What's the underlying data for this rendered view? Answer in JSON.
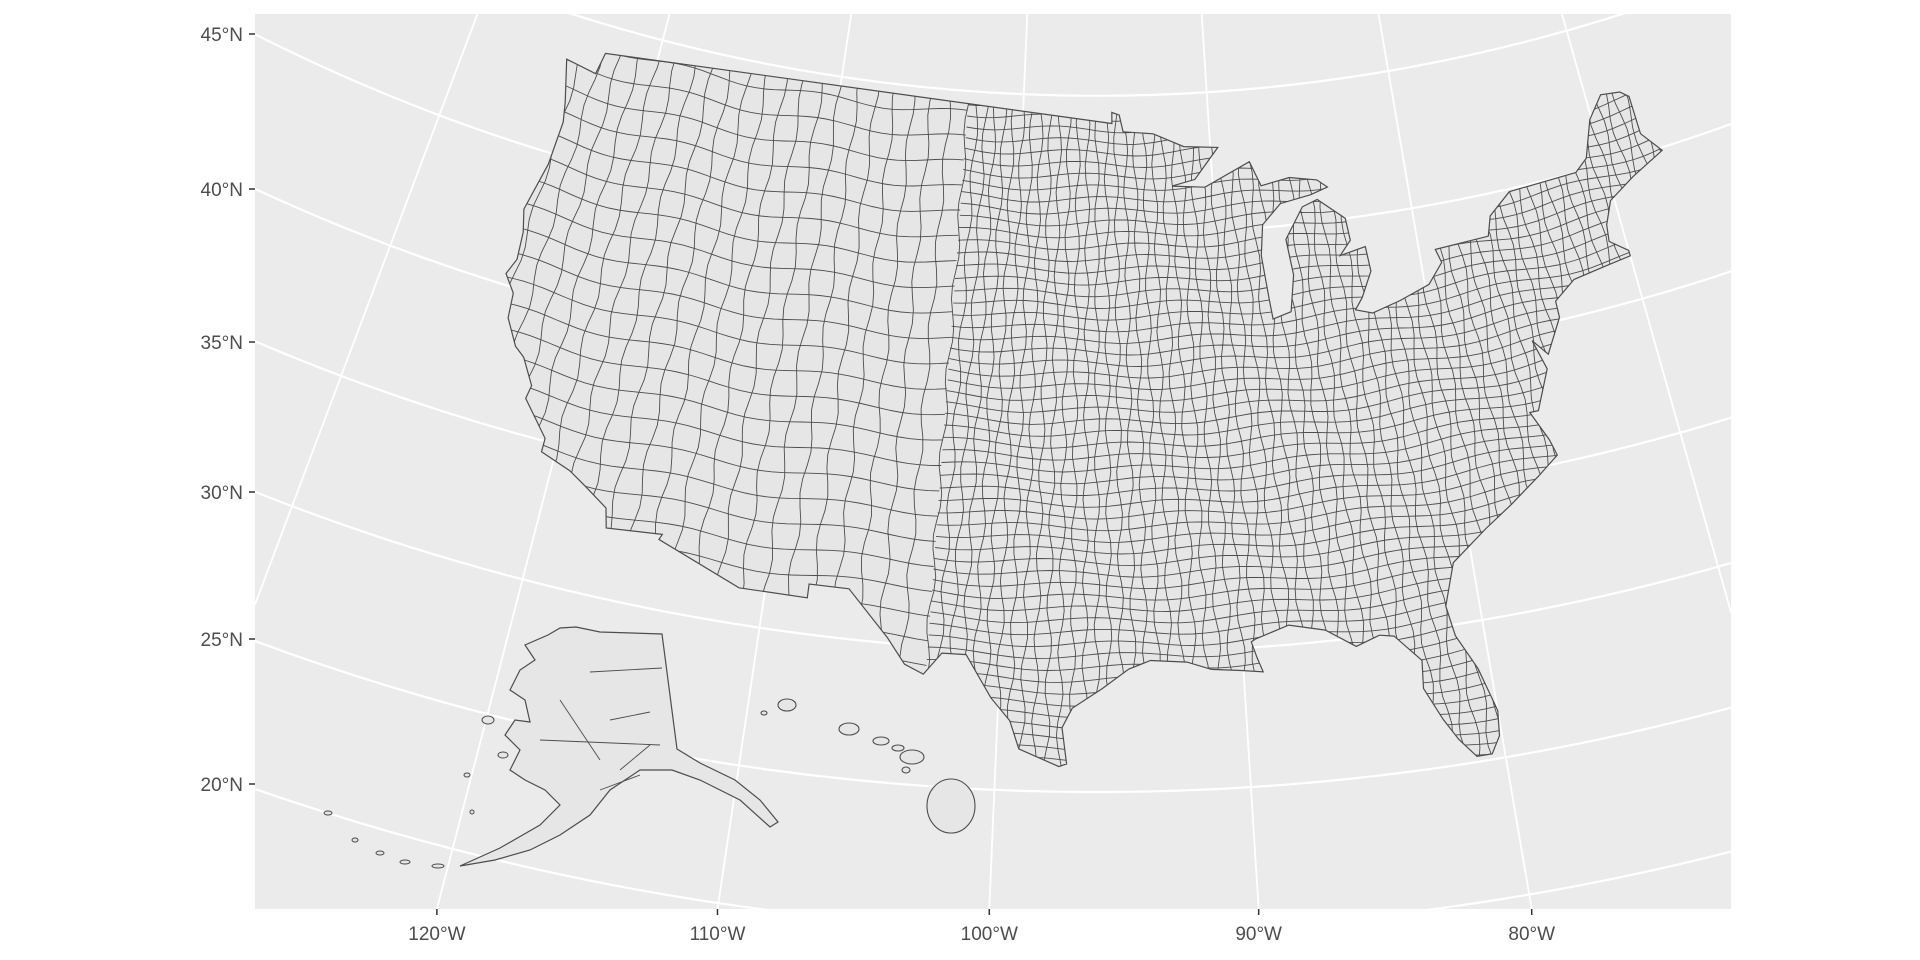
{
  "chart_data": {
    "type": "map",
    "title": "",
    "projection": "conic (Albers-like), central meridian ~96°W",
    "background_color": "#EBEBEB",
    "grid_color": "#FFFFFF",
    "land_fill": "#E6E6E6",
    "border_color": "#4D4D4D",
    "grid": true,
    "y_ticks": [
      {
        "lat": 45,
        "label": "45°N"
      },
      {
        "lat": 40,
        "label": "40°N"
      },
      {
        "lat": 35,
        "label": "35°N"
      },
      {
        "lat": 30,
        "label": "30°N"
      },
      {
        "lat": 25,
        "label": "25°N"
      },
      {
        "lat": 20,
        "label": "20°N"
      }
    ],
    "x_ticks": [
      {
        "lon": -120,
        "label": "120°W"
      },
      {
        "lon": -110,
        "label": "110°W"
      },
      {
        "lon": -100,
        "label": "100°W"
      },
      {
        "lon": -90,
        "label": "90°W"
      },
      {
        "lon": -80,
        "label": "80°W"
      }
    ],
    "regions": [
      "Contiguous US counties",
      "Alaska (inset)",
      "Hawaii (inset)"
    ],
    "contiguous_outline": [
      [
        -124.7,
        48.4
      ],
      [
        -123,
        48.2
      ],
      [
        -122.8,
        49
      ],
      [
        -95.2,
        49
      ],
      [
        -95.2,
        49.4
      ],
      [
        -94.8,
        49.3
      ],
      [
        -94.6,
        48.7
      ],
      [
        -93,
        48.6
      ],
      [
        -91.4,
        48.1
      ],
      [
        -89.6,
        48
      ],
      [
        -90.9,
        46.9
      ],
      [
        -92.1,
        46.7
      ],
      [
        -90.4,
        46.6
      ],
      [
        -88,
        47.4
      ],
      [
        -87.5,
        46.5
      ],
      [
        -86,
        46.7
      ],
      [
        -84.6,
        46.5
      ],
      [
        -84.1,
        46.2
      ],
      [
        -85,
        46
      ],
      [
        -86.6,
        45.8
      ],
      [
        -87.6,
        45.1
      ],
      [
        -87.8,
        44
      ],
      [
        -87.6,
        42.4
      ],
      [
        -87.5,
        41.7
      ],
      [
        -86.6,
        41.9
      ],
      [
        -86.3,
        43.2
      ],
      [
        -86.5,
        44.5
      ],
      [
        -85.5,
        45.6
      ],
      [
        -84.7,
        45.8
      ],
      [
        -83.4,
        45
      ],
      [
        -83.3,
        44.2
      ],
      [
        -83.9,
        43.7
      ],
      [
        -82.6,
        43.9
      ],
      [
        -82.5,
        43
      ],
      [
        -83.1,
        42.1
      ],
      [
        -83.5,
        41.7
      ],
      [
        -82.7,
        41.5
      ],
      [
        -81.3,
        41.8
      ],
      [
        -79.8,
        42.2
      ],
      [
        -79,
        42.9
      ],
      [
        -79.2,
        43.4
      ],
      [
        -76.5,
        43.5
      ],
      [
        -76.2,
        44.2
      ],
      [
        -75,
        44.9
      ],
      [
        -71.5,
        45
      ],
      [
        -70.8,
        45.4
      ],
      [
        -70.1,
        46.7
      ],
      [
        -69.2,
        47.45
      ],
      [
        -68.2,
        47.35
      ],
      [
        -67.8,
        47.1
      ],
      [
        -67.8,
        45.7
      ],
      [
        -67,
        44.9
      ],
      [
        -68.8,
        44.3
      ],
      [
        -70.2,
        43.7
      ],
      [
        -70.7,
        42.9
      ],
      [
        -70.8,
        42.3
      ],
      [
        -70,
        41.8
      ],
      [
        -70,
        41.6
      ],
      [
        -71.1,
        41.5
      ],
      [
        -72.9,
        41.3
      ],
      [
        -74,
        40.7
      ],
      [
        -74,
        40.1
      ],
      [
        -74.9,
        38.9
      ],
      [
        -75.5,
        39.5
      ],
      [
        -75.1,
        38.4
      ],
      [
        -75.9,
        37
      ],
      [
        -76.3,
        37
      ],
      [
        -75.7,
        35.9
      ],
      [
        -75.5,
        35.3
      ],
      [
        -76.5,
        34.7
      ],
      [
        -77.9,
        33.9
      ],
      [
        -79.2,
        33.2
      ],
      [
        -80.8,
        32.2
      ],
      [
        -81.4,
        30.7
      ],
      [
        -81.2,
        29.6
      ],
      [
        -80.5,
        28.3
      ],
      [
        -80,
        26.7
      ],
      [
        -80.1,
        25.8
      ],
      [
        -80.5,
        25.2
      ],
      [
        -81.1,
        25.2
      ],
      [
        -81.7,
        25.9
      ],
      [
        -82.2,
        26.7
      ],
      [
        -82.8,
        27.9
      ],
      [
        -82.7,
        28.9
      ],
      [
        -83.7,
        29.9
      ],
      [
        -84.3,
        30
      ],
      [
        -85.3,
        29.7
      ],
      [
        -86.5,
        30.4
      ],
      [
        -88,
        30.7
      ],
      [
        -89.4,
        30.3
      ],
      [
        -89.6,
        30.2
      ],
      [
        -89.4,
        29.6
      ],
      [
        -89.2,
        29.1
      ],
      [
        -90.1,
        29.2
      ],
      [
        -91.3,
        29.3
      ],
      [
        -92.3,
        29.6
      ],
      [
        -93.8,
        29.7
      ],
      [
        -94.7,
        29.4
      ],
      [
        -95.8,
        28.7
      ],
      [
        -97,
        28
      ],
      [
        -97.4,
        27.3
      ],
      [
        -97.2,
        26
      ],
      [
        -97.5,
        25.9
      ],
      [
        -99.1,
        26.5
      ],
      [
        -99.5,
        27.5
      ],
      [
        -100.3,
        28.3
      ],
      [
        -101.4,
        29.8
      ],
      [
        -102.4,
        29.8
      ],
      [
        -103.1,
        29
      ],
      [
        -103.9,
        29.3
      ],
      [
        -104.7,
        30.2
      ],
      [
        -106.5,
        31.8
      ],
      [
        -108.2,
        31.8
      ],
      [
        -108.2,
        31.3
      ],
      [
        -111.1,
        31.3
      ],
      [
        -114.8,
        32.5
      ],
      [
        -114.7,
        32.7
      ],
      [
        -117.1,
        32.5
      ],
      [
        -117.3,
        33.2
      ],
      [
        -118.4,
        33.8
      ],
      [
        -119.2,
        34.2
      ],
      [
        -120.6,
        34.6
      ],
      [
        -120.6,
        35.1
      ],
      [
        -121.9,
        36.3
      ],
      [
        -121.8,
        36.8
      ],
      [
        -122.5,
        37.7
      ],
      [
        -123,
        38
      ],
      [
        -123.7,
        38.9
      ],
      [
        -123.8,
        39.8
      ],
      [
        -124.4,
        40.4
      ],
      [
        -124.1,
        41
      ],
      [
        -124.2,
        42
      ],
      [
        -124.5,
        42.8
      ],
      [
        -124,
        44.6
      ],
      [
        -123.9,
        46.2
      ],
      [
        -124.1,
        46.9
      ],
      [
        -124.7,
        48.4
      ]
    ]
  }
}
